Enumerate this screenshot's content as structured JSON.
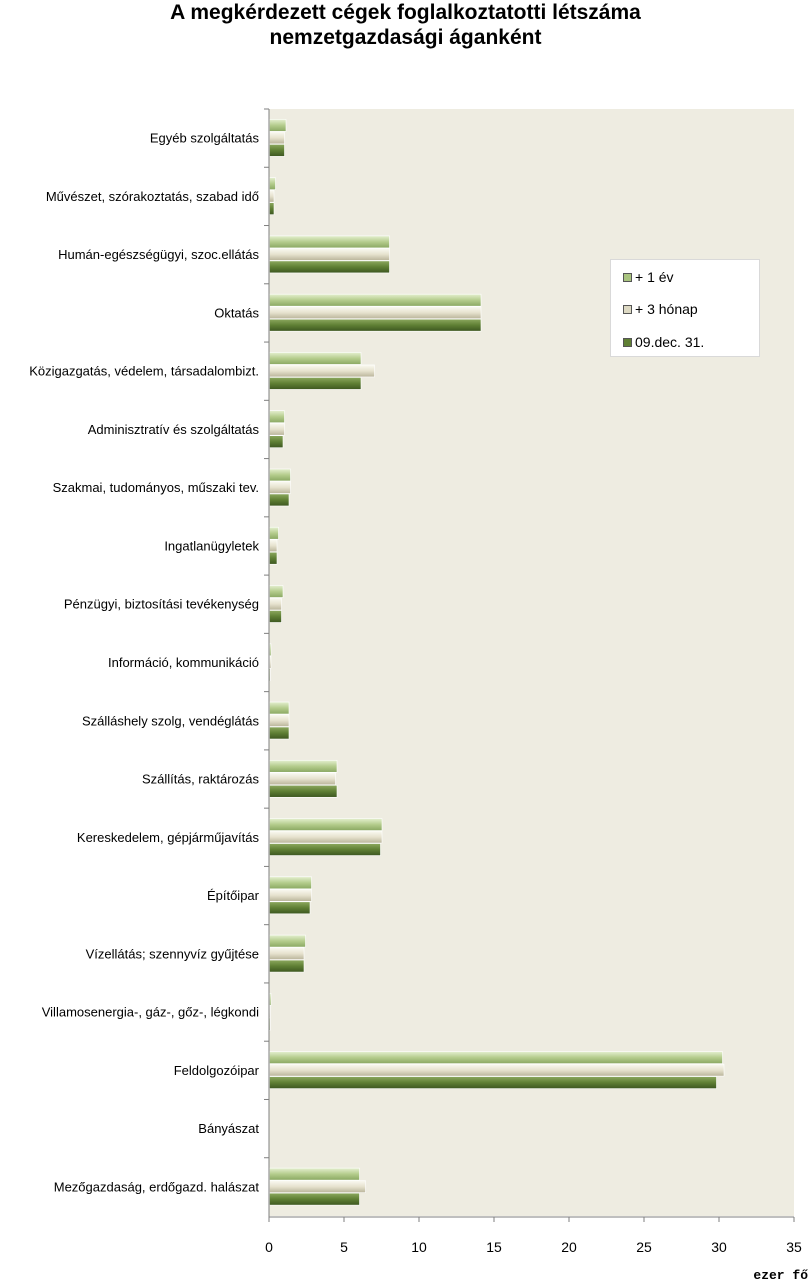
{
  "chart_data": {
    "type": "bar",
    "orientation": "horizontal",
    "title": "A megkérdezett cégek foglalkoztatotti létszáma nemzetgazdasági áganként",
    "title_lines": [
      "A megkérdezett cégek foglalkoztatotti létszáma",
      "nemzetgazdasági áganként"
    ],
    "unit_label": "ezer fő",
    "xlim": [
      0,
      35
    ],
    "xticks": [
      0,
      5,
      10,
      15,
      20,
      25,
      30,
      35
    ],
    "legend_position": "top-right",
    "grid": false,
    "categories": [
      "Egyéb szolgáltatás",
      "Művészet, szórakoztatás, szabad idő",
      "Humán-egészségügyi, szoc.ellátás",
      "Oktatás",
      "Közigazgatás, védelem, társadalombizt.",
      "Adminisztratív és szolgáltatás",
      "Szakmai, tudományos, műszaki tev.",
      "Ingatlanügyletek",
      "Pénzügyi, biztosítási  tevékenység",
      "Információ, kommunikáció",
      "Szálláshely szolg, vendéglátás",
      "Szállítás, raktározás",
      "Kereskedelem, gépjárműjavítás",
      "Építőipar",
      "Vízellátás; szennyvíz gyűjtése",
      "Villamosenergia-, gáz-, gőz-, légkondi",
      "Feldolgozóipar",
      "Bányászat",
      "Mezőgazdaság, erdőgazd. halászat"
    ],
    "series": [
      {
        "name": "+ 1 év",
        "color": "#a9c47f",
        "values": [
          1.1,
          0.4,
          8.0,
          14.1,
          6.1,
          1.0,
          1.4,
          0.6,
          0.9,
          0.1,
          1.3,
          4.5,
          7.5,
          2.8,
          2.4,
          0.1,
          30.2,
          0.0,
          6.0
        ]
      },
      {
        "name": "+ 3 hónap",
        "color": "#ddd9c3",
        "values": [
          1.0,
          0.3,
          8.0,
          14.1,
          7.0,
          1.0,
          1.4,
          0.5,
          0.8,
          0.1,
          1.3,
          4.4,
          7.5,
          2.8,
          2.3,
          0.05,
          30.3,
          0.0,
          6.4
        ]
      },
      {
        "name": "09.dec. 31.",
        "color": "#5f7f34",
        "values": [
          1.0,
          0.3,
          8.0,
          14.1,
          6.1,
          0.9,
          1.3,
          0.5,
          0.8,
          0.05,
          1.3,
          4.5,
          7.4,
          2.7,
          2.3,
          0.05,
          29.8,
          0.0,
          6.0
        ]
      }
    ]
  }
}
